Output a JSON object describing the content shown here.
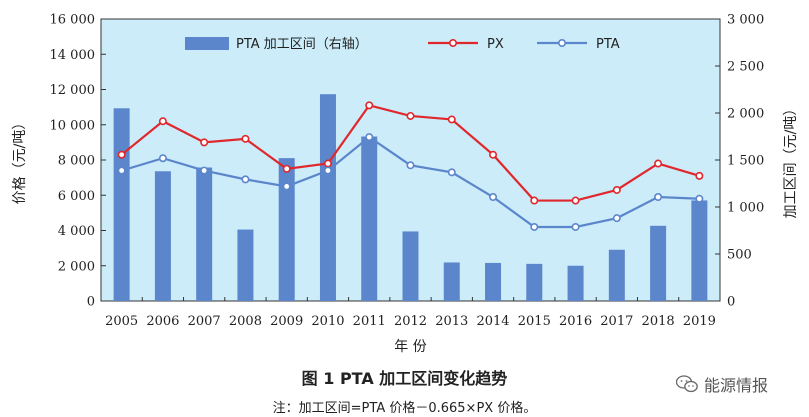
{
  "chart_data": {
    "type": "bar",
    "categories": [
      "2005",
      "2006",
      "2007",
      "2008",
      "2009",
      "2010",
      "2011",
      "2012",
      "2013",
      "2014",
      "2015",
      "2016",
      "2017",
      "2018",
      "2019"
    ],
    "left_axis": {
      "label": "价格（元/吨）",
      "ylim": [
        0,
        16000
      ],
      "ticks": [
        0,
        2000,
        4000,
        6000,
        8000,
        10000,
        12000,
        14000,
        16000
      ],
      "tick_labels": [
        "0",
        "2 000",
        "4 000",
        "6 000",
        "8 000",
        "10 000",
        "12 000",
        "14 000",
        "16 000"
      ]
    },
    "right_axis": {
      "label": "加工区间（元/吨）",
      "ylim": [
        0,
        3000
      ],
      "ticks": [
        0,
        500,
        1000,
        1500,
        2000,
        2500,
        3000
      ],
      "tick_labels": [
        "0",
        "500",
        "1 000",
        "1 500",
        "2 000",
        "2 500",
        "3 000"
      ]
    },
    "xlabel": "年 份",
    "series": [
      {
        "name": "PTA 加工区间（右轴）",
        "kind": "bar",
        "axis": "right",
        "color": "#5b86cc",
        "values": [
          2050,
          1380,
          1420,
          760,
          1520,
          2200,
          1750,
          740,
          410,
          405,
          395,
          375,
          545,
          800,
          1070
        ]
      },
      {
        "name": "PX",
        "kind": "line",
        "axis": "left",
        "color": "#e0272c",
        "values": [
          8300,
          10200,
          9000,
          9200,
          7500,
          7800,
          11100,
          10500,
          10300,
          8300,
          5700,
          5700,
          6300,
          7800,
          7100
        ]
      },
      {
        "name": "PTA",
        "kind": "line",
        "axis": "left",
        "color": "#5b86cc",
        "values": [
          7400,
          8100,
          7400,
          6900,
          6500,
          7400,
          9300,
          7700,
          7300,
          5900,
          4200,
          4200,
          4700,
          5900,
          5800
        ]
      }
    ],
    "legend_position": "top",
    "plot_background": "#ccecfa"
  },
  "figure": {
    "title": "图 1   PTA 加工区间变化趋势",
    "note": "注：加工区间=PTA 价格－0.665×PX 价格。"
  },
  "watermark": {
    "text": "能源情报",
    "icon": "wechat-icon"
  }
}
